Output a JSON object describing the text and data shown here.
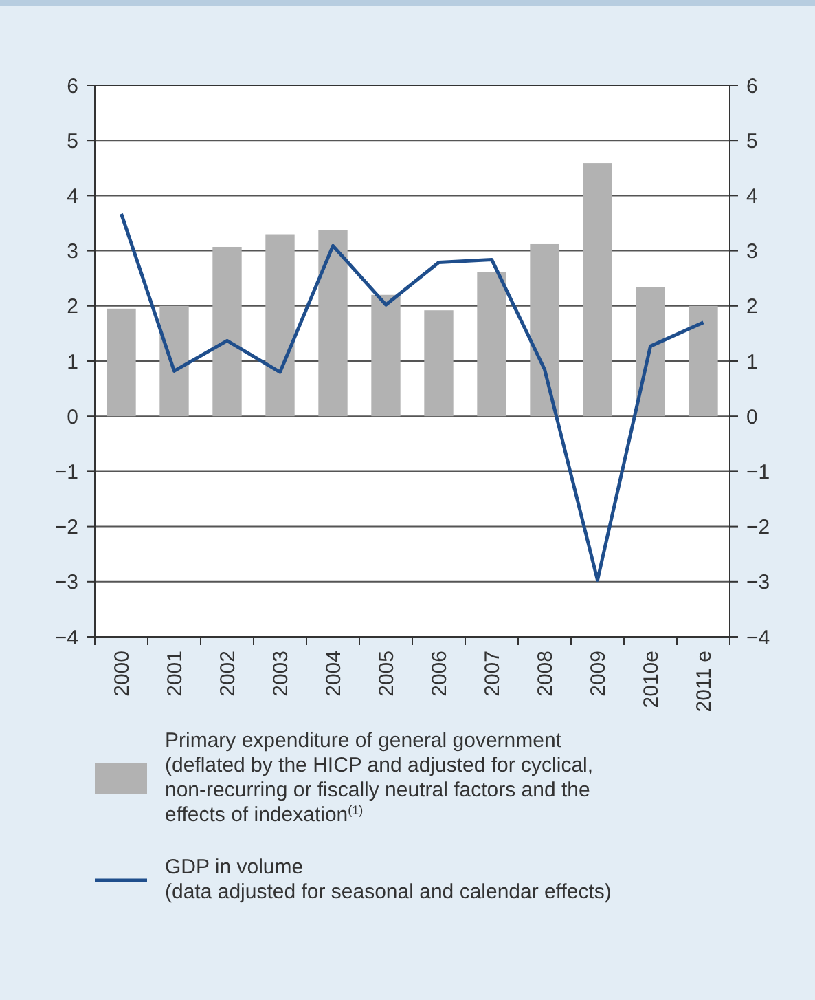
{
  "chart_data": {
    "type": "bar",
    "categories": [
      "2000",
      "2001",
      "2002",
      "2003",
      "2004",
      "2005",
      "2006",
      "2007",
      "2008",
      "2009",
      "2010e",
      "2011 e"
    ],
    "series": [
      {
        "name": "Primary expenditure of general government (deflated by the HICP and adjusted for cyclical, non-recurring or fiscally neutral factors and the effects of indexation$^{(1)}$",
        "color": "#b2b2b2",
        "values": [
          1.95,
          2.0,
          3.07,
          3.3,
          3.37,
          2.2,
          1.92,
          2.62,
          3.12,
          4.59,
          2.34,
          2.0
        ]
      },
      {
        "name": "GDP in volume (data adjusted for seasonal and calendar effects)",
        "type": "line",
        "color": "#1f4e8c",
        "values": [
          3.67,
          0.82,
          1.37,
          0.8,
          3.09,
          2.02,
          2.79,
          2.84,
          0.85,
          -2.97,
          1.27,
          1.7
        ]
      }
    ],
    "ylim": [
      -4,
      6
    ],
    "yticks": [
      {
        "value": -4,
        "label": "−4"
      },
      {
        "value": -3,
        "label": "−3"
      },
      {
        "value": -2,
        "label": "−2"
      },
      {
        "value": -1,
        "label": "−1"
      },
      0,
      1,
      2,
      3,
      4,
      5,
      6
    ],
    "y2lim": [
      -4,
      6
    ],
    "y2ticks": [
      {
        "value": -4,
        "label": "−4"
      },
      {
        "value": -3,
        "label": "−3"
      },
      {
        "value": -2,
        "label": "−2"
      },
      {
        "value": -1,
        "label": "−1"
      },
      0,
      1,
      2,
      3,
      4,
      5,
      6
    ],
    "grid": "y",
    "legend": "bottom",
    "marker": "none",
    "line_style": "solid"
  }
}
